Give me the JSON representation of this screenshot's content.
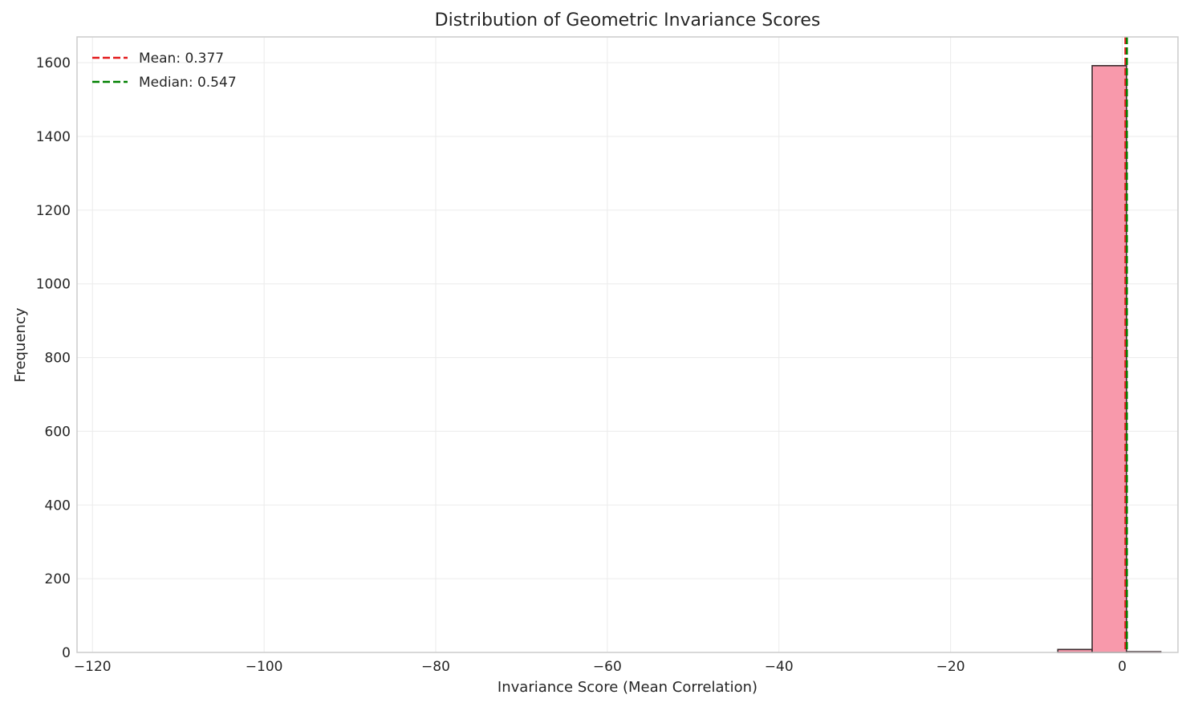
{
  "chart_data": {
    "type": "bar",
    "title": "Distribution of Geometric Invariance Scores",
    "xlabel": "Invariance Score (Mean Correlation)",
    "ylabel": "Frequency",
    "xlim": [
      -121.8,
      6.5
    ],
    "ylim": [
      0,
      1670
    ],
    "xticks": [
      -120,
      -100,
      -80,
      -60,
      -40,
      -20,
      0
    ],
    "yticks": [
      0,
      200,
      400,
      600,
      800,
      1000,
      1200,
      1400,
      1600
    ],
    "grid": true,
    "bin_width": 4.0,
    "bins": [
      {
        "x0": -7.5,
        "x1": -3.5,
        "count": 8
      },
      {
        "x0": -3.5,
        "x1": 0.5,
        "count": 1592
      },
      {
        "x0": 0.5,
        "x1": 4.5,
        "count": 2
      }
    ],
    "bar_color": "#f899ab",
    "bar_edge_color": "#3b2b2e",
    "reference_lines": [
      {
        "label": "Mean: 0.377",
        "value": 0.377,
        "color": "#e31a1c",
        "style": "dashed"
      },
      {
        "label": "Median: 0.547",
        "value": 0.547,
        "color": "#008000",
        "style": "dashed"
      }
    ],
    "legend_position": "top-left"
  }
}
